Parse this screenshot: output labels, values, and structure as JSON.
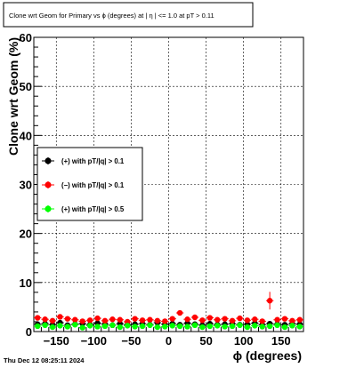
{
  "chart_data": {
    "type": "scatter",
    "title": "Clone wrt Geom for Primary vs ϕ (degrees) at |  η | <= 1.0 at pT > 0.11",
    "xlabel": "ϕ (degrees)",
    "ylabel": "Clone wrt Geom (%)",
    "xlim": [
      -180,
      180
    ],
    "ylim": [
      0,
      60
    ],
    "xticks": [
      -150,
      -100,
      -50,
      0,
      50,
      100,
      150
    ],
    "xtick_labels": [
      "−150",
      "−100",
      "−50",
      "0",
      "50",
      "100",
      "150"
    ],
    "yticks": [
      0,
      10,
      20,
      30,
      40,
      50,
      60
    ],
    "ytick_labels": [
      "0",
      "10",
      "20",
      "30",
      "40",
      "50",
      "60"
    ],
    "grid": true,
    "legend_position": "middle-left",
    "series": [
      {
        "name": "(+) with pT/|q| > 0.1",
        "color": "#000000",
        "x": [
          -175,
          -165,
          -155,
          -145,
          -135,
          -125,
          -115,
          -105,
          -95,
          -85,
          -75,
          -65,
          -55,
          -45,
          -35,
          -25,
          -15,
          -5,
          5,
          15,
          25,
          35,
          45,
          55,
          65,
          75,
          85,
          95,
          105,
          115,
          125,
          135,
          145,
          155,
          165,
          175
        ],
        "y": [
          1.5,
          1.6,
          1.4,
          1.8,
          1.3,
          1.5,
          1.6,
          1.4,
          1.7,
          1.5,
          1.3,
          1.6,
          1.4,
          1.5,
          1.6,
          1.4,
          1.8,
          1.5,
          1.6,
          1.4,
          1.7,
          1.5,
          1.3,
          1.6,
          1.4,
          1.5,
          1.6,
          1.4,
          1.5,
          1.7,
          1.4,
          1.6,
          1.5,
          1.4,
          1.6,
          1.5
        ]
      },
      {
        "name": "(−) with pT/|q| > 0.1",
        "color": "#ff0000",
        "x": [
          -175,
          -165,
          -155,
          -145,
          -135,
          -125,
          -115,
          -105,
          -95,
          -85,
          -75,
          -65,
          -55,
          -45,
          -35,
          -25,
          -15,
          -5,
          5,
          15,
          25,
          35,
          45,
          55,
          65,
          75,
          85,
          95,
          105,
          115,
          125,
          135,
          145,
          155,
          165,
          175
        ],
        "y": [
          2.8,
          2.5,
          2.2,
          3.0,
          2.6,
          2.4,
          2.1,
          2.3,
          2.7,
          2.2,
          2.5,
          2.4,
          2.0,
          2.6,
          2.3,
          2.4,
          2.2,
          2.1,
          2.6,
          3.8,
          2.5,
          2.9,
          2.3,
          2.8,
          2.4,
          2.6,
          2.2,
          2.7,
          2.3,
          2.5,
          2.1,
          6.3,
          2.4,
          2.6,
          2.2,
          2.4
        ]
      },
      {
        "name": "(+) with pT/|q| > 0.5",
        "color": "#00ff00",
        "x": [
          -175,
          -165,
          -155,
          -145,
          -135,
          -125,
          -115,
          -105,
          -95,
          -85,
          -75,
          -65,
          -55,
          -45,
          -35,
          -25,
          -15,
          -5,
          5,
          15,
          25,
          35,
          45,
          55,
          65,
          75,
          85,
          95,
          105,
          115,
          125,
          135,
          145,
          155,
          165,
          175
        ],
        "y": [
          1.1,
          1.3,
          0.9,
          1.2,
          1.0,
          1.4,
          0.8,
          1.2,
          1.0,
          1.1,
          1.3,
          0.9,
          1.2,
          1.0,
          1.1,
          1.3,
          0.9,
          1.0,
          1.2,
          1.1,
          1.0,
          1.3,
          0.9,
          1.1,
          1.2,
          1.0,
          1.1,
          1.3,
          0.9,
          1.2,
          1.0,
          1.1,
          1.3,
          0.9,
          1.2,
          1.0
        ]
      }
    ]
  },
  "timestamp": "Thu Dec 12 08:25:11 2024"
}
